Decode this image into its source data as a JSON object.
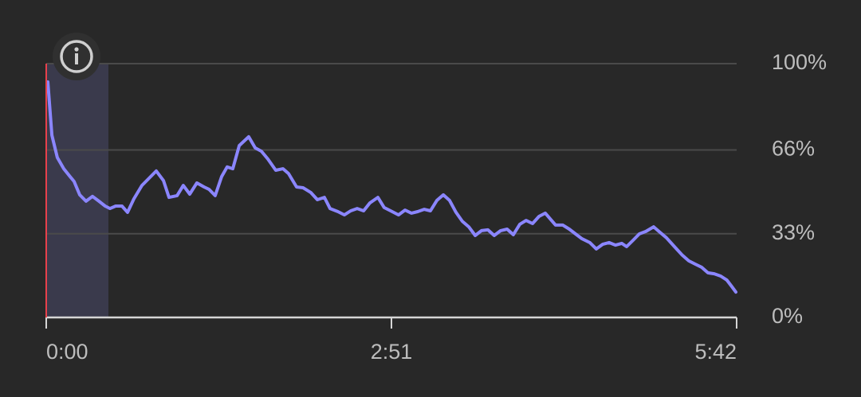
{
  "chart_data": {
    "type": "line",
    "color": "#8b86ff",
    "grid": true,
    "x": [
      0.8,
      2.8,
      5.5,
      8.7,
      11.8,
      13.8,
      16.6,
      19.7,
      22.9,
      26.1,
      29.2,
      31.6,
      34.4,
      37.5,
      40.3,
      43.4,
      47.4,
      50.5,
      54.5,
      58.1,
      60.8,
      64.8,
      67.9,
      71.1,
      74.6,
      78.2,
      80.6,
      83.7,
      86.9,
      89.6,
      92.4,
      95.6,
      100.3,
      103.5,
      106.6,
      109.8,
      113.7,
      117.3,
      120.0,
      124.0,
      127.2,
      131.1,
      134.3,
      137.8,
      140.6,
      144.5,
      147.7,
      150.8,
      154.0,
      157.2,
      160.3,
      164.3,
      167.4,
      170.6,
      174.5,
      177.7,
      180.9,
      184.0,
      187.2,
      190.3,
      193.5,
      196.7,
      199.8,
      203.0,
      206.1,
      209.3,
      212.5,
      215.6,
      218.8,
      221.9,
      225.1,
      228.3,
      231.4,
      234.6,
      237.7,
      240.9,
      244.1,
      247.2,
      249.6,
      252.3,
      255.9,
      259.1,
      262.2,
      265.4,
      269.3,
      272.5,
      275.6,
      278.8,
      282.0,
      285.1,
      287.5,
      290.7,
      293.8,
      297.0,
      300.9,
      304.1,
      307.2,
      311.2,
      315.1,
      318.3,
      321.5,
      324.6,
      327.8,
      330.9,
      334.1,
      337.2,
      339.6,
      341.6
    ],
    "values": [
      92.8,
      71.8,
      63.0,
      58.6,
      55.5,
      53.6,
      48.3,
      45.8,
      47.7,
      45.8,
      43.9,
      42.9,
      43.9,
      43.9,
      41.4,
      46.7,
      52.0,
      54.5,
      57.7,
      53.9,
      47.3,
      48.0,
      52.0,
      48.6,
      53.0,
      51.4,
      50.5,
      48.0,
      55.5,
      59.3,
      58.6,
      67.7,
      71.2,
      66.8,
      65.5,
      62.4,
      58.0,
      58.6,
      56.7,
      51.4,
      51.1,
      49.2,
      46.4,
      47.3,
      42.9,
      41.7,
      40.4,
      42.0,
      42.9,
      42.0,
      45.1,
      47.3,
      43.3,
      42.0,
      40.4,
      42.3,
      41.1,
      41.7,
      42.6,
      42.0,
      46.1,
      48.3,
      46.1,
      41.4,
      37.9,
      35.7,
      32.3,
      34.2,
      34.5,
      32.3,
      34.2,
      34.8,
      32.6,
      36.7,
      38.2,
      37.0,
      39.8,
      41.1,
      38.9,
      36.4,
      36.4,
      34.8,
      32.9,
      31.0,
      29.5,
      27.0,
      28.8,
      29.5,
      28.5,
      29.2,
      27.9,
      30.4,
      32.9,
      33.9,
      35.7,
      33.5,
      31.4,
      27.9,
      24.5,
      22.3,
      21.0,
      19.8,
      17.6,
      17.2,
      16.3,
      14.7,
      12.2,
      10.0
    ],
    "xlim": [
      0,
      342
    ],
    "xticks": [
      {
        "value": 0,
        "label": "0:00"
      },
      {
        "value": 171,
        "label": "2:51"
      },
      {
        "value": 342,
        "label": "5:42"
      }
    ],
    "ylim": [
      0,
      100
    ],
    "yticks": [
      {
        "value": 0,
        "label": "0%"
      },
      {
        "value": 33,
        "label": "33%"
      },
      {
        "value": 66,
        "label": "66%"
      },
      {
        "value": 100,
        "label": "100%"
      }
    ]
  }
}
